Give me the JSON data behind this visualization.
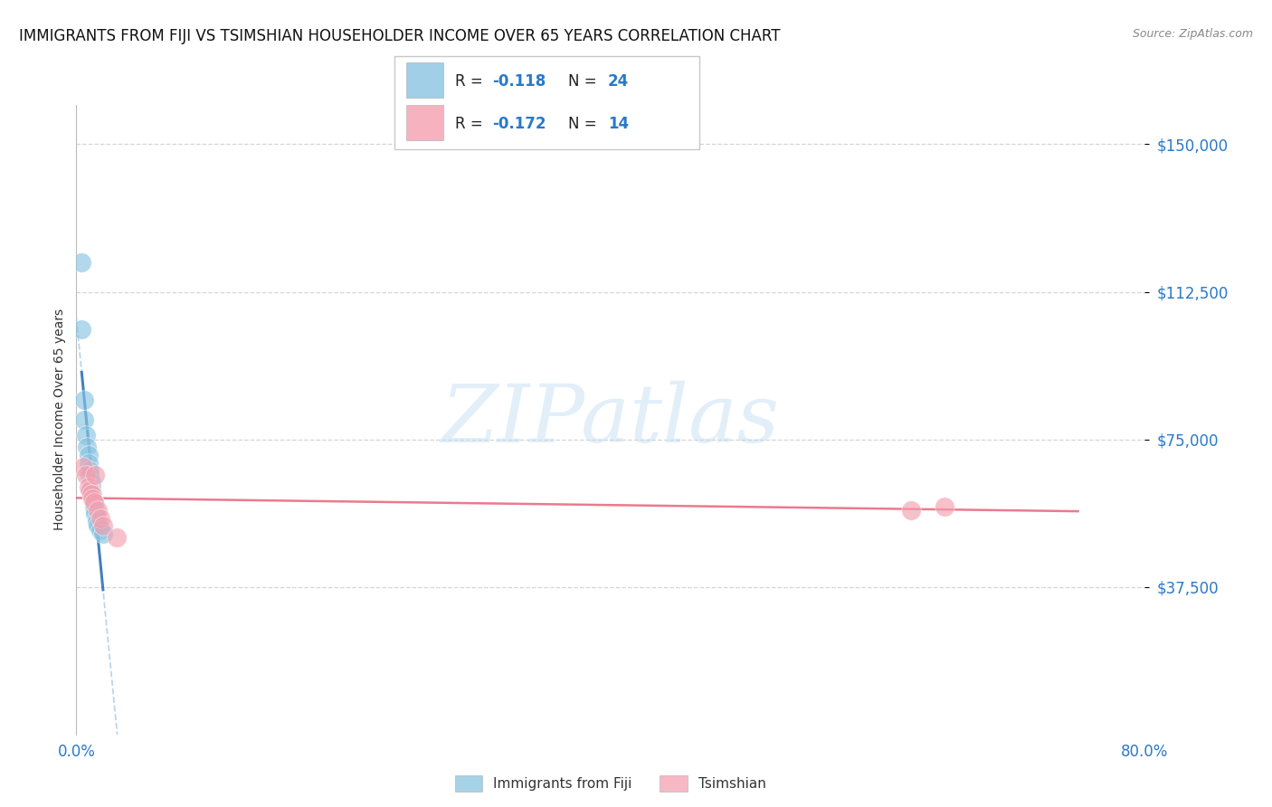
{
  "title": "IMMIGRANTS FROM FIJI VS TSIMSHIAN HOUSEHOLDER INCOME OVER 65 YEARS CORRELATION CHART",
  "source": "Source: ZipAtlas.com",
  "ylabel": "Householder Income Over 65 years",
  "xlim": [
    0.0,
    0.8
  ],
  "ylim": [
    0,
    160000
  ],
  "legend_fiji_r": "-0.118",
  "legend_fiji_n": "24",
  "legend_tsim_r": "-0.172",
  "legend_tsim_n": "14",
  "fiji_color": "#89c4e1",
  "tsim_color": "#f4a0b0",
  "fiji_line_color": "#3a7bbf",
  "fiji_dash_color": "#a0c4e8",
  "tsim_line_color": "#e8637a",
  "fiji_x": [
    0.004,
    0.004,
    0.006,
    0.006,
    0.007,
    0.008,
    0.009,
    0.009,
    0.01,
    0.01,
    0.011,
    0.011,
    0.011,
    0.012,
    0.012,
    0.013,
    0.013,
    0.014,
    0.014,
    0.015,
    0.015,
    0.016,
    0.018,
    0.02
  ],
  "fiji_y": [
    120000,
    103000,
    85000,
    80000,
    76000,
    73000,
    71000,
    69000,
    67000,
    66000,
    64000,
    63000,
    62000,
    61000,
    60000,
    59000,
    58000,
    57000,
    56000,
    55000,
    54000,
    53000,
    52000,
    51000
  ],
  "tsim_x": [
    0.005,
    0.007,
    0.009,
    0.01,
    0.011,
    0.012,
    0.013,
    0.014,
    0.016,
    0.018,
    0.02,
    0.03,
    0.625,
    0.65
  ],
  "tsim_y": [
    68000,
    66000,
    63000,
    62000,
    61000,
    60000,
    59000,
    66000,
    57000,
    55000,
    53000,
    50000,
    57000,
    58000
  ],
  "watermark": "ZIPatlas",
  "grid_color": "#cccccc",
  "bg_color": "#ffffff",
  "title_fontsize": 12,
  "label_color": "#2979c8",
  "black_color": "#222222",
  "tick_fontsize": 12,
  "legend_r_color": "#222222",
  "legend_val_color": "#2979c8"
}
